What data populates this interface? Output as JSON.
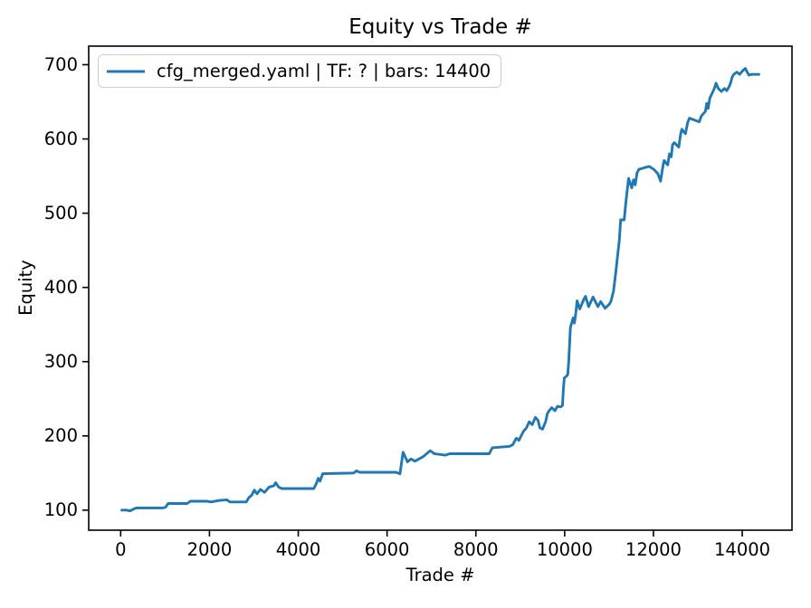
{
  "figure": {
    "background": "#ffffff"
  },
  "chart_data": {
    "type": "line",
    "title": "Equity vs Trade #",
    "xlabel": "Trade #",
    "ylabel": "Equity",
    "xlim": [
      -720,
      15120
    ],
    "ylim": [
      73,
      725
    ],
    "xticks": [
      0,
      2000,
      4000,
      6000,
      8000,
      10000,
      12000,
      14000
    ],
    "yticks": [
      100,
      200,
      300,
      400,
      500,
      600,
      700
    ],
    "grid": false,
    "legend": {
      "position": "upper-left",
      "border_color": "#cccccc",
      "background": "#ffffff"
    },
    "axis_color": "#000000",
    "series": [
      {
        "name": "cfg_merged.yaml | TF: ? | bars: 14400",
        "color": "#1f77b4",
        "points": [
          [
            0,
            100
          ],
          [
            130,
            100
          ],
          [
            210,
            99
          ],
          [
            310,
            102
          ],
          [
            360,
            103
          ],
          [
            950,
            103
          ],
          [
            1010,
            104
          ],
          [
            1070,
            109
          ],
          [
            1500,
            109
          ],
          [
            1570,
            112
          ],
          [
            1950,
            112
          ],
          [
            2030,
            111
          ],
          [
            2210,
            113
          ],
          [
            2390,
            114
          ],
          [
            2460,
            111
          ],
          [
            2830,
            111
          ],
          [
            2890,
            117
          ],
          [
            2950,
            120
          ],
          [
            3010,
            127
          ],
          [
            3070,
            122
          ],
          [
            3150,
            128
          ],
          [
            3240,
            124
          ],
          [
            3340,
            131
          ],
          [
            3450,
            133
          ],
          [
            3490,
            137
          ],
          [
            3560,
            131
          ],
          [
            3630,
            129
          ],
          [
            4350,
            129
          ],
          [
            4410,
            136
          ],
          [
            4450,
            143
          ],
          [
            4490,
            139
          ],
          [
            4550,
            149
          ],
          [
            5250,
            150
          ],
          [
            5310,
            153
          ],
          [
            5380,
            151
          ],
          [
            6200,
            151
          ],
          [
            6290,
            149
          ],
          [
            6360,
            178
          ],
          [
            6460,
            165
          ],
          [
            6540,
            169
          ],
          [
            6630,
            166
          ],
          [
            6810,
            172
          ],
          [
            6910,
            177
          ],
          [
            6970,
            180
          ],
          [
            7070,
            176
          ],
          [
            7310,
            174
          ],
          [
            7410,
            176
          ],
          [
            8300,
            176
          ],
          [
            8370,
            184
          ],
          [
            8760,
            186
          ],
          [
            8830,
            188
          ],
          [
            8910,
            197
          ],
          [
            8970,
            194
          ],
          [
            9070,
            206
          ],
          [
            9140,
            211
          ],
          [
            9200,
            219
          ],
          [
            9270,
            215
          ],
          [
            9340,
            225
          ],
          [
            9400,
            221
          ],
          [
            9440,
            211
          ],
          [
            9500,
            209
          ],
          [
            9570,
            219
          ],
          [
            9610,
            230
          ],
          [
            9650,
            234
          ],
          [
            9710,
            238
          ],
          [
            9780,
            234
          ],
          [
            9840,
            240
          ],
          [
            9910,
            239
          ],
          [
            9950,
            241
          ],
          [
            9970,
            262
          ],
          [
            9990,
            278
          ],
          [
            10050,
            281
          ],
          [
            10070,
            283
          ],
          [
            10090,
            300
          ],
          [
            10110,
            321
          ],
          [
            10130,
            346
          ],
          [
            10190,
            359
          ],
          [
            10220,
            352
          ],
          [
            10250,
            365
          ],
          [
            10280,
            382
          ],
          [
            10340,
            371
          ],
          [
            10440,
            385
          ],
          [
            10470,
            388
          ],
          [
            10540,
            374
          ],
          [
            10640,
            387
          ],
          [
            10750,
            374
          ],
          [
            10810,
            381
          ],
          [
            10910,
            372
          ],
          [
            11000,
            377
          ],
          [
            11040,
            381
          ],
          [
            11100,
            395
          ],
          [
            11150,
            420
          ],
          [
            11200,
            447
          ],
          [
            11230,
            463
          ],
          [
            11260,
            491
          ],
          [
            11340,
            491
          ],
          [
            11380,
            515
          ],
          [
            11440,
            547
          ],
          [
            11510,
            534
          ],
          [
            11550,
            545
          ],
          [
            11590,
            538
          ],
          [
            11630,
            554
          ],
          [
            11670,
            559
          ],
          [
            11900,
            563
          ],
          [
            12010,
            559
          ],
          [
            12100,
            553
          ],
          [
            12160,
            543
          ],
          [
            12200,
            559
          ],
          [
            12240,
            571
          ],
          [
            12320,
            565
          ],
          [
            12360,
            580
          ],
          [
            12400,
            576
          ],
          [
            12430,
            592
          ],
          [
            12470,
            595
          ],
          [
            12570,
            589
          ],
          [
            12610,
            606
          ],
          [
            12640,
            613
          ],
          [
            12720,
            607
          ],
          [
            12770,
            622
          ],
          [
            12810,
            628
          ],
          [
            13030,
            623
          ],
          [
            13080,
            631
          ],
          [
            13170,
            637
          ],
          [
            13200,
            648
          ],
          [
            13230,
            641
          ],
          [
            13270,
            655
          ],
          [
            13310,
            660
          ],
          [
            13370,
            668
          ],
          [
            13410,
            675
          ],
          [
            13460,
            668
          ],
          [
            13530,
            664
          ],
          [
            13600,
            668
          ],
          [
            13650,
            665
          ],
          [
            13710,
            671
          ],
          [
            13740,
            676
          ],
          [
            13770,
            683
          ],
          [
            13810,
            687
          ],
          [
            13880,
            690
          ],
          [
            13940,
            687
          ],
          [
            14010,
            692
          ],
          [
            14070,
            695
          ],
          [
            14110,
            690
          ],
          [
            14150,
            686
          ],
          [
            14220,
            687
          ],
          [
            14400,
            687
          ]
        ]
      }
    ]
  }
}
